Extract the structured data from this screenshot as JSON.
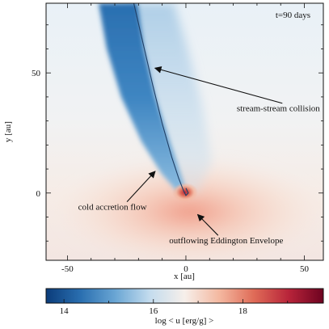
{
  "chart_data": {
    "type": "heatmap",
    "time_label": "t=90 days",
    "xlabel": "x [au]",
    "ylabel": "y [au]",
    "xlim": [
      -59,
      58
    ],
    "ylim": [
      -28,
      79
    ],
    "x_ticks": [
      -50,
      0,
      50
    ],
    "y_ticks": [
      0,
      50
    ],
    "colorbar": {
      "label": "log < u [erg/g] >",
      "range": [
        13.6,
        19.8
      ],
      "ticks": [
        14,
        16,
        18
      ],
      "colormap": [
        "#0b3c7a",
        "#2a6fb0",
        "#6aa6d4",
        "#c4dcee",
        "#f6efea",
        "#f4b8a0",
        "#df6b57",
        "#b8243a",
        "#6d0320"
      ]
    },
    "annotations": [
      {
        "text": "stream-stream collision",
        "text_xy": [
          39,
          34
        ],
        "arrow_to": [
          -13,
          52
        ]
      },
      {
        "text": "cold accretion flow",
        "text_xy": [
          -31,
          -7
        ],
        "arrow_to": [
          -13,
          9
        ]
      },
      {
        "text": "outflowing Eddington Envelope",
        "text_xy": [
          17,
          -21
        ],
        "arrow_to": [
          5,
          -9
        ]
      }
    ],
    "features": {
      "stream_orbit": {
        "x": [
          -22,
          -18,
          -14,
          -10,
          -6,
          -3,
          -1,
          0,
          1,
          0
        ],
        "y": [
          79,
          62,
          45,
          29,
          15,
          6,
          1,
          -1,
          0,
          2
        ]
      },
      "hot_spot": {
        "x": 0,
        "y": 0,
        "value": 19.2
      }
    }
  }
}
